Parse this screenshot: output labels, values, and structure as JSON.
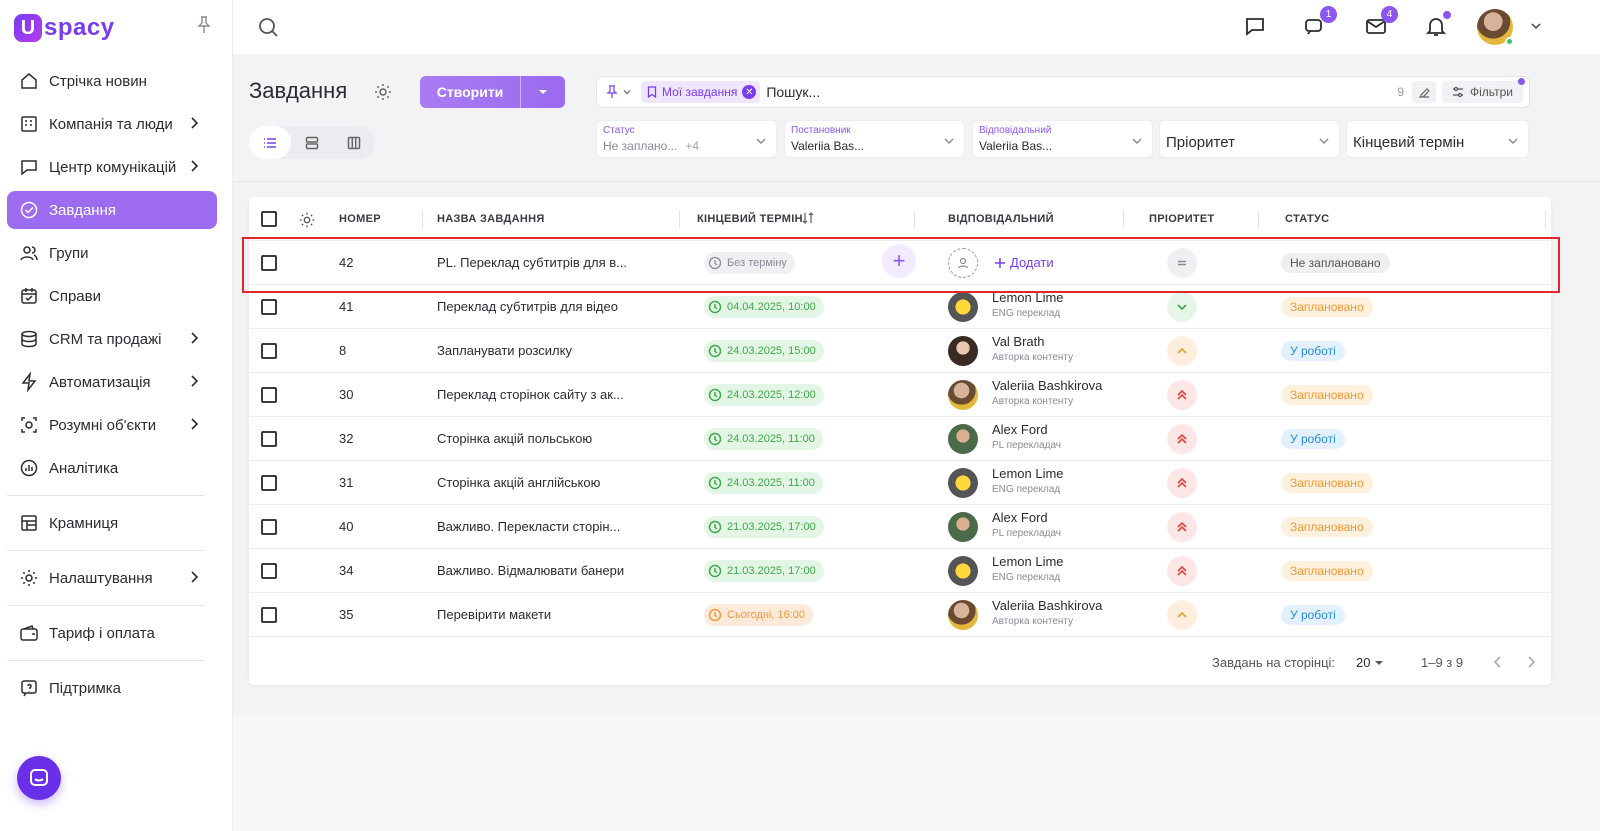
{
  "brand": {
    "logo_letter": "U",
    "name": "spacy",
    "accent": "#7a3cf0"
  },
  "sidebar": {
    "items": [
      {
        "label": "Стрічка новин",
        "icon": "home-icon",
        "chevron": false,
        "active": false
      },
      {
        "label": "Компанія та люди",
        "icon": "company-icon",
        "chevron": true,
        "active": false
      },
      {
        "label": "Центр комунікацій",
        "icon": "chat-icon",
        "chevron": true,
        "active": false
      },
      {
        "label": "Завдання",
        "icon": "check-circle-icon",
        "chevron": false,
        "active": true
      },
      {
        "label": "Групи",
        "icon": "users-icon",
        "chevron": false,
        "active": false
      },
      {
        "label": "Справи",
        "icon": "calendar-check-icon",
        "chevron": false,
        "active": false
      },
      {
        "label": "CRM та продажі",
        "icon": "database-icon",
        "chevron": true,
        "active": false
      },
      {
        "label": "Автоматизація",
        "icon": "lightning-icon",
        "chevron": true,
        "active": false
      },
      {
        "label": "Розумні об'єкти",
        "icon": "smart-object-icon",
        "chevron": true,
        "active": false
      },
      {
        "label": "Аналітика",
        "icon": "analytics-icon",
        "chevron": false,
        "active": false
      },
      {
        "label": "Крамниця",
        "icon": "store-icon",
        "chevron": false,
        "active": false
      },
      {
        "label": "Налаштування",
        "icon": "gear-icon",
        "chevron": true,
        "active": false
      },
      {
        "label": "Тариф і оплата",
        "icon": "wallet-icon",
        "chevron": false,
        "active": false
      },
      {
        "label": "Підтримка",
        "icon": "support-icon",
        "chevron": false,
        "active": false
      }
    ]
  },
  "topbar": {
    "chat_badge": "1",
    "mail_badge": "4"
  },
  "page": {
    "title": "Завдання",
    "create_label": "Створити",
    "search": {
      "chip": "Мої завдання",
      "placeholder": "Пошук...",
      "count": "9",
      "filters_label": "Фільтри"
    },
    "filters": {
      "status": {
        "label": "Статус",
        "value": "Не заплано...",
        "extra": "+4"
      },
      "author": {
        "label": "Постановник",
        "value": "Valeriia Bas..."
      },
      "assignee": {
        "label": "Відповідальний",
        "value": "Valeriia Bas..."
      },
      "priority": {
        "placeholder": "Пріоритет"
      },
      "deadline": {
        "placeholder": "Кінцевий термін"
      }
    }
  },
  "table": {
    "headers": {
      "number": "НОМЕР",
      "name": "НАЗВА ЗАВДАННЯ",
      "deadline": "КІНЦЕВИЙ ТЕРМІН",
      "assignee": "ВІДПОВІДАЛЬНИЙ",
      "priority": "ПРІОРИТЕТ",
      "status": "СТАТУС"
    },
    "new_row": {
      "number": "42",
      "name": "PL. Переклад субтитрів для в...",
      "deadline": "Без терміну",
      "add_label": "Додати",
      "status": "Не заплановано"
    },
    "rows": [
      {
        "number": "41",
        "name": "Переклад субтитрів для відео",
        "deadline": "04.04.2025, 10:00",
        "deadline_tone": "green",
        "assignee": "Lemon Lime",
        "role": "ENG переклад",
        "avatar": "lemon",
        "priority": "low",
        "status": "Заплановано",
        "status_tone": "orange"
      },
      {
        "number": "8",
        "name": "Запланувати розсилку",
        "deadline": "24.03.2025, 15:00",
        "deadline_tone": "green",
        "assignee": "Val Brath",
        "role": "Авторка контенту",
        "avatar": "val",
        "priority": "med",
        "status": "У роботі",
        "status_tone": "blue"
      },
      {
        "number": "30",
        "name": "Переклад сторінок сайту з ак...",
        "deadline": "24.03.2025, 12:00",
        "deadline_tone": "green",
        "assignee": "Valeriia Bashkirova",
        "role": "Авторка контенту",
        "avatar": "valeriia",
        "priority": "high",
        "status": "Заплановано",
        "status_tone": "orange"
      },
      {
        "number": "32",
        "name": "Сторінка акцій польською",
        "deadline": "24.03.2025, 11:00",
        "deadline_tone": "green",
        "assignee": "Alex Ford",
        "role": "PL перекладач",
        "avatar": "alex",
        "priority": "high",
        "status": "У роботі",
        "status_tone": "blue"
      },
      {
        "number": "31",
        "name": "Сторінка акцій англійською",
        "deadline": "24.03.2025, 11:00",
        "deadline_tone": "green",
        "assignee": "Lemon Lime",
        "role": "ENG переклад",
        "avatar": "lemon",
        "priority": "high",
        "status": "Заплановано",
        "status_tone": "orange"
      },
      {
        "number": "40",
        "name": "Важливо. Перекласти сторін...",
        "deadline": "21.03.2025, 17:00",
        "deadline_tone": "green",
        "assignee": "Alex Ford",
        "role": "PL перекладач",
        "avatar": "alex",
        "priority": "high",
        "status": "Заплановано",
        "status_tone": "orange"
      },
      {
        "number": "34",
        "name": "Важливо. Відмалювати банери",
        "deadline": "21.03.2025, 17:00",
        "deadline_tone": "green",
        "assignee": "Lemon Lime",
        "role": "ENG переклад",
        "avatar": "lemon",
        "priority": "high",
        "status": "Заплановано",
        "status_tone": "orange"
      },
      {
        "number": "35",
        "name": "Перевірити макети",
        "deadline": "Сьогодні, 16:00",
        "deadline_tone": "orange",
        "assignee": "Valeriia Bashkirova",
        "role": "Авторка контенту",
        "avatar": "valeriia",
        "priority": "med",
        "status": "У роботі",
        "status_tone": "blue"
      }
    ],
    "footer": {
      "per_page_label": "Завдань на сторінці:",
      "per_page": "20",
      "range": "1–9 з 9"
    }
  }
}
